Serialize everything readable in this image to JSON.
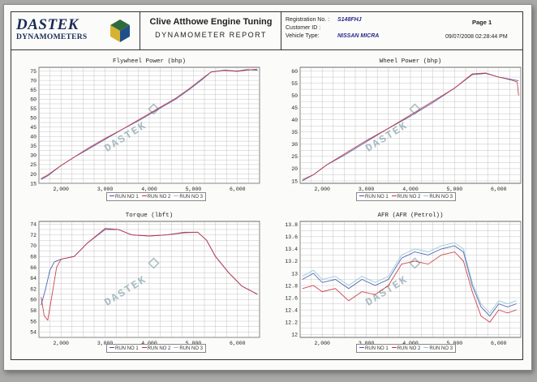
{
  "header": {
    "logo_main": "DASTEK",
    "logo_sub": "DYNAMOMETERS",
    "company": "Clive Atthowe Engine Tuning",
    "report_title": "DYNAMOMETER REPORT",
    "registration_label": "Registration No. :",
    "registration_value": "S148FHJ",
    "customer_label": "Customer ID :",
    "customer_value": "",
    "vehicle_label": "Vehicle Type:",
    "vehicle_value": "NISSAN MICRA",
    "page_label": "Page 1",
    "datetime": "09/07/2008 02:28:44 PM"
  },
  "legend": {
    "run1": "RUN NO 1",
    "run2": "RUN NO 2",
    "run3": "RUN NO 3"
  },
  "watermark": "DASTEK",
  "colors": {
    "run1": "#3e55a8",
    "run2": "#c8313b",
    "run3": "#8fc8d8",
    "grid": "#b5b5b5"
  },
  "chart_data": [
    {
      "type": "line",
      "title": "Flywheel Power (bhp)",
      "xlim": [
        1500,
        6500
      ],
      "ylim": [
        15,
        77
      ],
      "xticks": [
        "2,000",
        "3,000",
        "4,000",
        "5,000",
        "6,000"
      ],
      "xtick_values": [
        2000,
        3000,
        4000,
        5000,
        6000
      ],
      "yticks": [
        "15",
        "20",
        "25",
        "30",
        "35",
        "40",
        "45",
        "50",
        "55",
        "60",
        "65",
        "70",
        "75"
      ],
      "ytick_values": [
        15,
        20,
        25,
        30,
        35,
        40,
        45,
        50,
        55,
        60,
        65,
        70,
        75
      ],
      "series": [
        {
          "name": "RUN NO 1",
          "x": [
            1550,
            1700,
            2000,
            2300,
            2600,
            3000,
            3400,
            3800,
            4200,
            4600,
            4900,
            5200,
            5400,
            5700,
            6000,
            6200,
            6450
          ],
          "y": [
            17,
            19,
            24.5,
            29,
            33,
            38.5,
            44,
            49,
            54.5,
            60,
            65,
            70.5,
            74.5,
            75.5,
            75,
            75.8,
            75.5
          ]
        },
        {
          "name": "RUN NO 2",
          "x": [
            1550,
            1700,
            2000,
            2300,
            2600,
            3000,
            3400,
            3800,
            4200,
            4600,
            4900,
            5200,
            5400,
            5700,
            6000,
            6200,
            6450
          ],
          "y": [
            17.5,
            19.5,
            24.5,
            29,
            33.5,
            39,
            44,
            49.5,
            55,
            60.5,
            65.5,
            71,
            74.5,
            75.3,
            74.8,
            75.5,
            76
          ]
        }
      ]
    },
    {
      "type": "line",
      "title": "Wheel Power (bhp)",
      "xlim": [
        1500,
        6500
      ],
      "ylim": [
        14,
        61.5
      ],
      "xticks": [
        "2,000",
        "3,000",
        "4,000",
        "5,000",
        "6,000"
      ],
      "xtick_values": [
        2000,
        3000,
        4000,
        5000,
        6000
      ],
      "yticks": [
        "15",
        "20",
        "25",
        "30",
        "35",
        "40",
        "45",
        "50",
        "55",
        "60"
      ],
      "ytick_values": [
        15,
        20,
        25,
        30,
        35,
        40,
        45,
        50,
        55,
        60
      ],
      "series": [
        {
          "name": "RUN NO 1",
          "x": [
            1550,
            1800,
            2100,
            2500,
            3000,
            3500,
            4000,
            4500,
            5000,
            5400,
            5700,
            6000,
            6300,
            6450
          ],
          "y": [
            15,
            17.5,
            21.5,
            25.5,
            31,
            36.5,
            41.5,
            47,
            53,
            58.5,
            59,
            57.5,
            56.5,
            56
          ]
        },
        {
          "name": "RUN NO 2",
          "x": [
            1550,
            1800,
            2100,
            2500,
            3000,
            3500,
            4000,
            4500,
            5000,
            5400,
            5700,
            6000,
            6300,
            6420,
            6450
          ],
          "y": [
            15.5,
            17.5,
            21.5,
            26,
            31.5,
            36.5,
            42,
            47.5,
            53,
            58.8,
            59.2,
            57.5,
            56.2,
            55.5,
            50
          ]
        }
      ]
    },
    {
      "type": "line",
      "title": "Torque (lbft)",
      "xlim": [
        1500,
        6500
      ],
      "ylim": [
        53,
        74.5
      ],
      "xticks": [
        "2,000",
        "3,000",
        "4,000",
        "5,000",
        "6,000"
      ],
      "xtick_values": [
        2000,
        3000,
        4000,
        5000,
        6000
      ],
      "yticks": [
        "54",
        "56",
        "58",
        "60",
        "62",
        "64",
        "66",
        "68",
        "70",
        "72",
        "74"
      ],
      "ytick_values": [
        54,
        56,
        58,
        60,
        62,
        64,
        66,
        68,
        70,
        72,
        74
      ],
      "series": [
        {
          "name": "RUN NO 1",
          "x": [
            1550,
            1650,
            1750,
            1850,
            2000,
            2300,
            2600,
            3000,
            3300,
            3600,
            4000,
            4400,
            4800,
            5100,
            5300,
            5500,
            5800,
            6100,
            6450
          ],
          "y": [
            59,
            62,
            65.5,
            67,
            67.5,
            68,
            70.5,
            73,
            73,
            72,
            71.8,
            72,
            72.5,
            72.5,
            71,
            68,
            65,
            62.5,
            61
          ]
        },
        {
          "name": "RUN NO 2",
          "x": [
            1550,
            1620,
            1700,
            1780,
            1900,
            2000,
            2300,
            2600,
            3000,
            3300,
            3600,
            4000,
            4400,
            4800,
            5100,
            5300,
            5500,
            5800,
            6100,
            6450
          ],
          "y": [
            60.5,
            57,
            56.2,
            60,
            66,
            67.5,
            68,
            70.5,
            73.2,
            73,
            72,
            71.8,
            72,
            72.4,
            72.5,
            71,
            68,
            65,
            62.5,
            61
          ]
        }
      ]
    },
    {
      "type": "line",
      "title": "AFR (AFR (Petrol))",
      "xlim": [
        1500,
        6500
      ],
      "ylim": [
        11.95,
        13.85
      ],
      "xticks": [
        "2,000",
        "3,000",
        "4,000",
        "5,000",
        "6,000"
      ],
      "xtick_values": [
        2000,
        3000,
        4000,
        5000,
        6000
      ],
      "yticks": [
        "12",
        "12.2",
        "12.4",
        "12.6",
        "12.8",
        "13",
        "13.2",
        "13.4",
        "13.6",
        "13.8"
      ],
      "ytick_values": [
        12,
        12.2,
        12.4,
        12.6,
        12.8,
        13,
        13.2,
        13.4,
        13.6,
        13.8
      ],
      "series": [
        {
          "name": "RUN NO 1",
          "x": [
            1550,
            1800,
            2000,
            2300,
            2600,
            2900,
            3200,
            3500,
            3800,
            4100,
            4400,
            4700,
            5000,
            5200,
            5400,
            5600,
            5800,
            6000,
            6200,
            6400
          ],
          "y": [
            12.9,
            13.0,
            12.85,
            12.9,
            12.75,
            12.9,
            12.8,
            12.9,
            13.25,
            13.35,
            13.3,
            13.4,
            13.45,
            13.35,
            12.8,
            12.45,
            12.3,
            12.5,
            12.45,
            12.5
          ]
        },
        {
          "name": "RUN NO 2",
          "x": [
            1550,
            1800,
            2000,
            2300,
            2600,
            2900,
            3200,
            3500,
            3800,
            4100,
            4400,
            4700,
            5000,
            5200,
            5400,
            5600,
            5800,
            6000,
            6200,
            6400
          ],
          "y": [
            12.75,
            12.8,
            12.7,
            12.75,
            12.55,
            12.7,
            12.65,
            12.8,
            13.15,
            13.2,
            13.15,
            13.3,
            13.35,
            13.2,
            12.7,
            12.3,
            12.2,
            12.4,
            12.35,
            12.4
          ]
        },
        {
          "name": "RUN NO 3",
          "x": [
            1550,
            1800,
            2000,
            2300,
            2600,
            2900,
            3200,
            3500,
            3800,
            4100,
            4400,
            4700,
            5000,
            5200,
            5400,
            5600,
            5800,
            6000,
            6200,
            6400
          ],
          "y": [
            12.95,
            13.05,
            12.9,
            12.95,
            12.8,
            12.95,
            12.85,
            12.95,
            13.3,
            13.4,
            13.35,
            13.45,
            13.5,
            13.4,
            12.85,
            12.5,
            12.35,
            12.55,
            12.5,
            12.55
          ]
        }
      ]
    }
  ]
}
